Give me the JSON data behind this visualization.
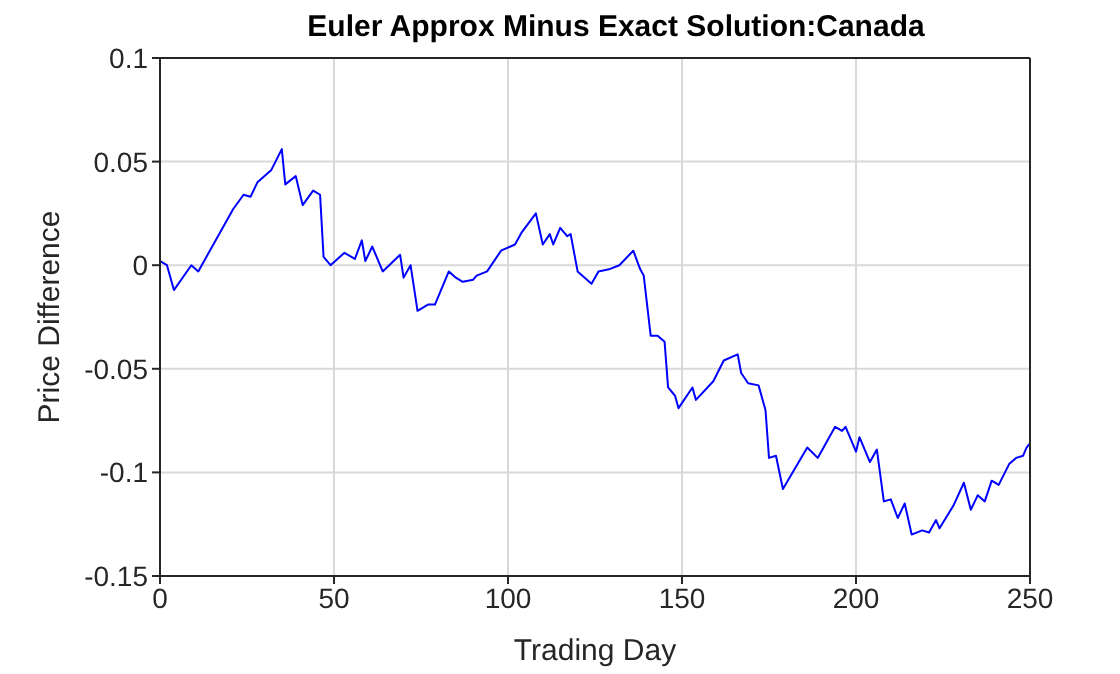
{
  "chart_data": {
    "type": "line",
    "title": "Euler Approx Minus Exact Solution:Canada",
    "xlabel": "Trading Day",
    "ylabel": "Price Difference",
    "xlim": [
      0,
      250
    ],
    "xticks": [
      0,
      50,
      100,
      150,
      200,
      250
    ],
    "ylim": [
      -0.15,
      0.1
    ],
    "yticks": [
      -0.15,
      -0.1,
      -0.05,
      0,
      0.05,
      0.1
    ],
    "grid": true,
    "marker": "none",
    "line_style": "solid",
    "series": [
      {
        "color": "#0000ff",
        "x": [
          0,
          2,
          4,
          9,
          11,
          21,
          24,
          26,
          28,
          32,
          35,
          36,
          39,
          41,
          44,
          46,
          47,
          49,
          53,
          56,
          58,
          59,
          61,
          63,
          64,
          69,
          70,
          72,
          74,
          77,
          79,
          83,
          85,
          87,
          90,
          91,
          94,
          98,
          102,
          104,
          108,
          110,
          112,
          113,
          115,
          117,
          118,
          120,
          124,
          126,
          129,
          132,
          136,
          138,
          139,
          141,
          143,
          145,
          146,
          148,
          149,
          153,
          154,
          159,
          162,
          166,
          167,
          169,
          172,
          174,
          175,
          177,
          179,
          186,
          189,
          194,
          196,
          197,
          200,
          201,
          204,
          206,
          208,
          210,
          212,
          214,
          216,
          219,
          221,
          223,
          224,
          228,
          231,
          233,
          235,
          237,
          239,
          241,
          244,
          246,
          248,
          249,
          250
        ],
        "values": [
          0.002,
          0,
          -0.012,
          0,
          -0.003,
          0.027,
          0.034,
          0.033,
          0.04,
          0.046,
          0.056,
          0.039,
          0.043,
          0.029,
          0.036,
          0.034,
          0.004,
          0,
          0.006,
          0.003,
          0.012,
          0.002,
          0.009,
          0.001,
          -0.003,
          0.005,
          -0.006,
          0,
          -0.022,
          -0.019,
          -0.019,
          -0.003,
          -0.006,
          -0.008,
          -0.007,
          -0.005,
          -0.003,
          0.007,
          0.01,
          0.016,
          0.025,
          0.01,
          0.015,
          0.01,
          0.018,
          0.014,
          0.015,
          -0.003,
          -0.009,
          -0.003,
          -0.002,
          0,
          0.007,
          -0.002,
          -0.005,
          -0.034,
          -0.034,
          -0.037,
          -0.059,
          -0.063,
          -0.069,
          -0.059,
          -0.065,
          -0.056,
          -0.046,
          -0.043,
          -0.052,
          -0.057,
          -0.058,
          -0.07,
          -0.093,
          -0.092,
          -0.108,
          -0.088,
          -0.093,
          -0.078,
          -0.08,
          -0.078,
          -0.09,
          -0.083,
          -0.095,
          -0.089,
          -0.114,
          -0.113,
          -0.122,
          -0.115,
          -0.13,
          -0.128,
          -0.129,
          -0.123,
          -0.127,
          -0.116,
          -0.105,
          -0.118,
          -0.111,
          -0.114,
          -0.104,
          -0.106,
          -0.096,
          -0.093,
          -0.092,
          -0.088,
          -0.086
        ]
      }
    ]
  }
}
